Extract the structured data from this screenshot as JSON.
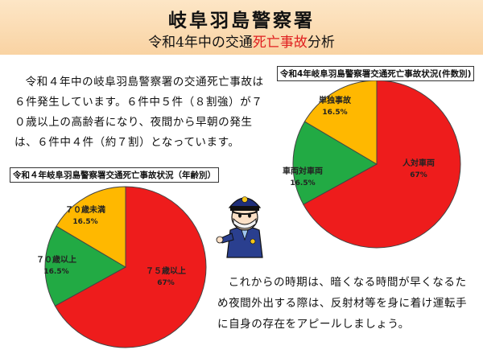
{
  "header": {
    "title": "岐阜羽島警察署",
    "subtitle_pre": "令和4年中の交通",
    "subtitle_red": "死亡事故",
    "subtitle_post": "分析"
  },
  "intro_text": "令和４年中の岐阜羽島警察署の交通死亡事故は６件発生しています。６件中５件（８割強）が７０歳以上の高齢者になり、夜間から早朝の発生は、６件中４件（約７割）となっています。",
  "bottom_text": "これからの時期は、暗くなる時間が早くなるため夜間外出する際は、反射材等を身に着け運転手に自身の存在をアピールしましょう。",
  "colors": {
    "red": "#ee1c1c",
    "green": "#22aa44",
    "orange": "#ffb800"
  },
  "chart_data": [
    {
      "type": "pie",
      "title": "令和４年岐阜羽島警察署交通死亡事故状況（年齢別）",
      "slices": [
        {
          "label": "７５歳以上",
          "value": 67,
          "display": "67%",
          "color": "#ee1c1c"
        },
        {
          "label": "７０歳以上",
          "value": 16.5,
          "display": "16.5%",
          "color": "#22aa44"
        },
        {
          "label": "７０歳未満",
          "value": 16.5,
          "display": "16.5%",
          "color": "#ffb800"
        }
      ]
    },
    {
      "type": "pie",
      "title": "令和4年岐阜羽島警察署交通死亡事故状況(件数別)",
      "slices": [
        {
          "label": "人対車両",
          "value": 67,
          "display": "67%",
          "color": "#ee1c1c"
        },
        {
          "label": "車両対車両",
          "value": 16.5,
          "display": "16.5%",
          "color": "#22aa44"
        },
        {
          "label": "単独事故",
          "value": 16.5,
          "display": "16.5%",
          "color": "#ffb800"
        }
      ]
    }
  ]
}
